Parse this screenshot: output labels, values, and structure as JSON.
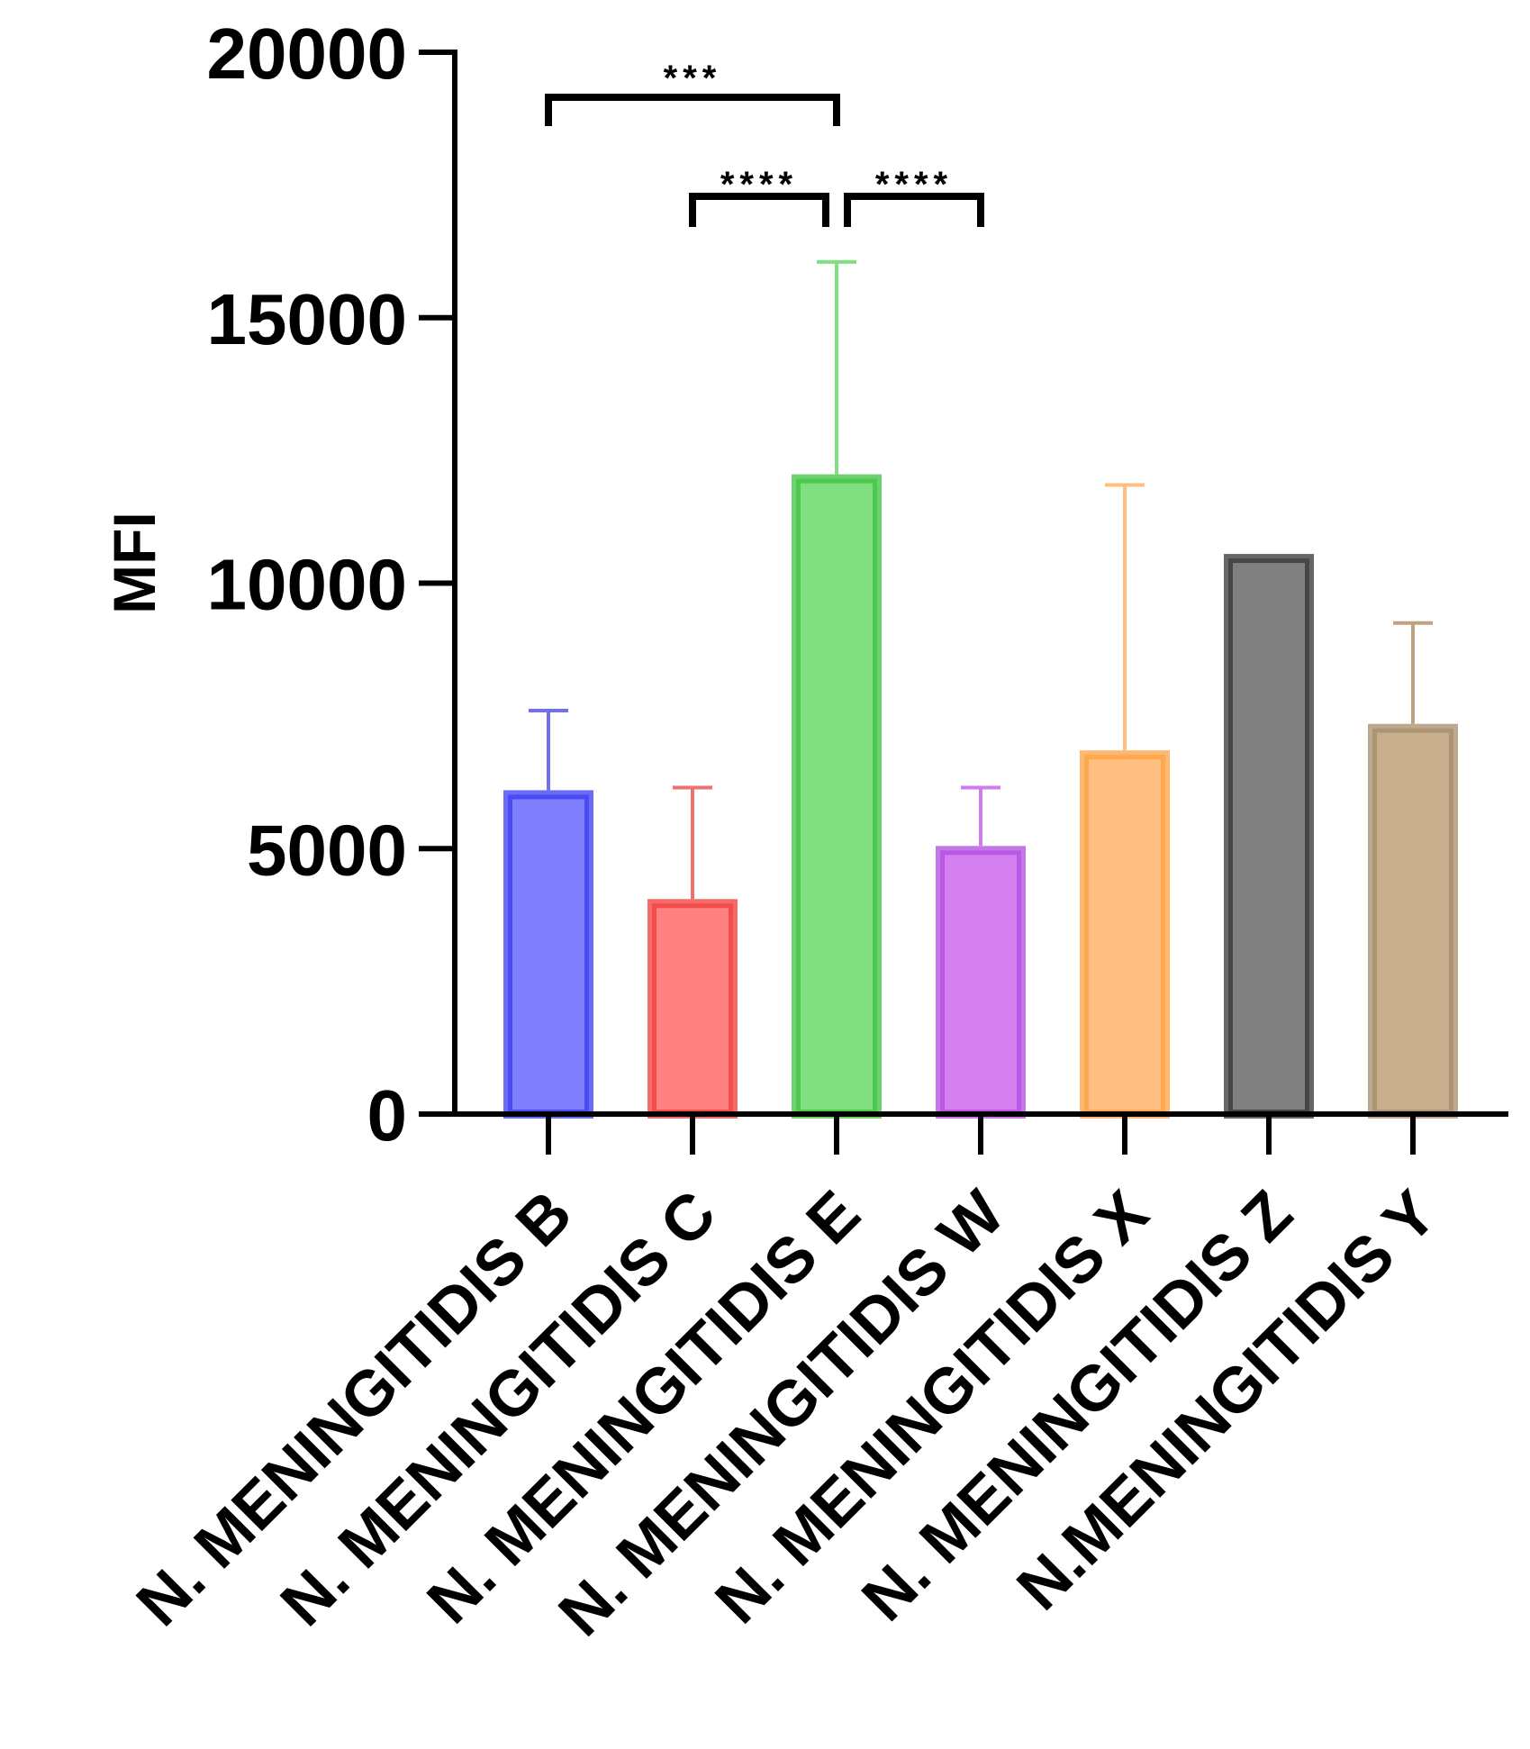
{
  "chart_data": {
    "type": "bar",
    "title": "",
    "xlabel": "",
    "ylabel": "MFI",
    "ylim": [
      0,
      20000
    ],
    "yticks": [
      0,
      5000,
      10000,
      15000,
      20000
    ],
    "ytick_labels": [
      "0",
      "5000",
      "10000",
      "15000",
      "20000"
    ],
    "categories": [
      "N. MENINGITIDIS B",
      "N. MENINGITIDIS C",
      "N. MENINGITIDIS E",
      "N. MENINGITIDIS W",
      "N. MENINGITIDIS X",
      "N. MENINGITIDIS Z",
      "N.MENINGITIDIS Y"
    ],
    "values": [
      6100,
      4050,
      12050,
      5050,
      6850,
      10550,
      7350
    ],
    "error_upper": [
      7600,
      6150,
      16050,
      6150,
      11850,
      null,
      9250
    ],
    "fill_colors": [
      "#8080ff",
      "#ff8080",
      "#80df80",
      "#d580f0",
      "#ffbf80",
      "#808080",
      "#c8ae8c"
    ],
    "edge_colors": [
      "#3a3af0",
      "#f03a3a",
      "#3cc23c",
      "#b04ae0",
      "#ffa040",
      "#333333",
      "#a58c6a"
    ],
    "error_colors": [
      "#7070f0",
      "#f07070",
      "#80df80",
      "#d07cf0",
      "#ffbf80",
      "#555555",
      "#c0a282"
    ],
    "significance": [
      {
        "from": "N. MENINGITIDIS B",
        "to": "N. MENINGITIDIS E",
        "label": "***"
      },
      {
        "from": "N. MENINGITIDIS C",
        "to": "N. MENINGITIDIS E",
        "label": "****"
      },
      {
        "from": "N. MENINGITIDIS E",
        "to": "N. MENINGITIDIS W",
        "label": "****"
      }
    ],
    "grid": false,
    "legend": "none"
  }
}
